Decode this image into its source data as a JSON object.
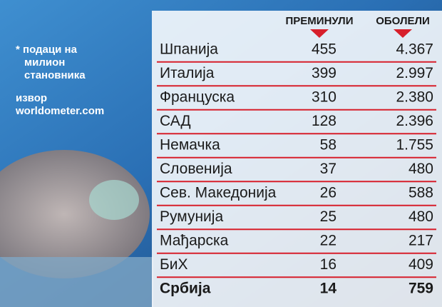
{
  "note": {
    "lines": [
      "* подаци на",
      "милион",
      "становника"
    ]
  },
  "source": {
    "label": "извор",
    "site": "worldometer.com"
  },
  "table": {
    "headers": [
      "ПРЕМИНУЛИ",
      "ОБОЛЕЛИ"
    ],
    "rows": [
      [
        "Шпанија",
        "455",
        "4.367"
      ],
      [
        "Италија",
        "399",
        "2.997"
      ],
      [
        "Француска",
        "310",
        "2.380"
      ],
      [
        "САД",
        "128",
        "2.396"
      ],
      [
        "Немачка",
        "58",
        "1.755"
      ],
      [
        "Словенија",
        "37",
        "480"
      ],
      [
        "Сев. Македонија",
        "26",
        "588"
      ],
      [
        "Румунија",
        "25",
        "480"
      ],
      [
        "Мађарска",
        "22",
        "217"
      ],
      [
        "БиХ",
        "16",
        "409"
      ],
      [
        "Србија",
        "14",
        "759"
      ]
    ]
  }
}
